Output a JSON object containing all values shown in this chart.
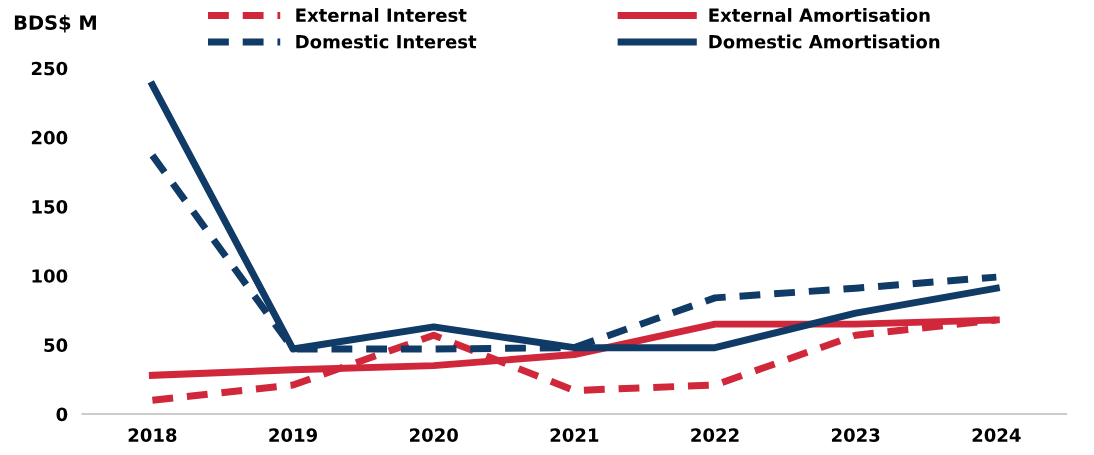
{
  "chart_data": {
    "type": "line",
    "ylabel": "BDS$ M",
    "categories": [
      "2018",
      "2019",
      "2020",
      "2021",
      "2022",
      "2023",
      "2024"
    ],
    "series": [
      {
        "name": "External Interest",
        "color": "#d0283a",
        "line_style": "dashed",
        "values": [
          10,
          21,
          57,
          17,
          21,
          57,
          68
        ]
      },
      {
        "name": "Domestic Interest",
        "color": "#0f3b66",
        "line_style": "dashed",
        "values": [
          187,
          47,
          47,
          48,
          84,
          91,
          99
        ]
      },
      {
        "name": "External Amortisation",
        "color": "#d0283a",
        "line_style": "solid",
        "values": [
          28,
          32,
          35,
          43,
          65,
          65,
          68
        ]
      },
      {
        "name": "Domestic Amortisation",
        "color": "#0f3b66",
        "line_style": "solid",
        "values": [
          238,
          47,
          63,
          48,
          48,
          73,
          91
        ]
      }
    ],
    "ylim": [
      0,
      250
    ],
    "yticks": [
      0,
      50,
      100,
      150,
      200,
      250
    ],
    "grid": false,
    "legend": "top",
    "marker": "none"
  }
}
